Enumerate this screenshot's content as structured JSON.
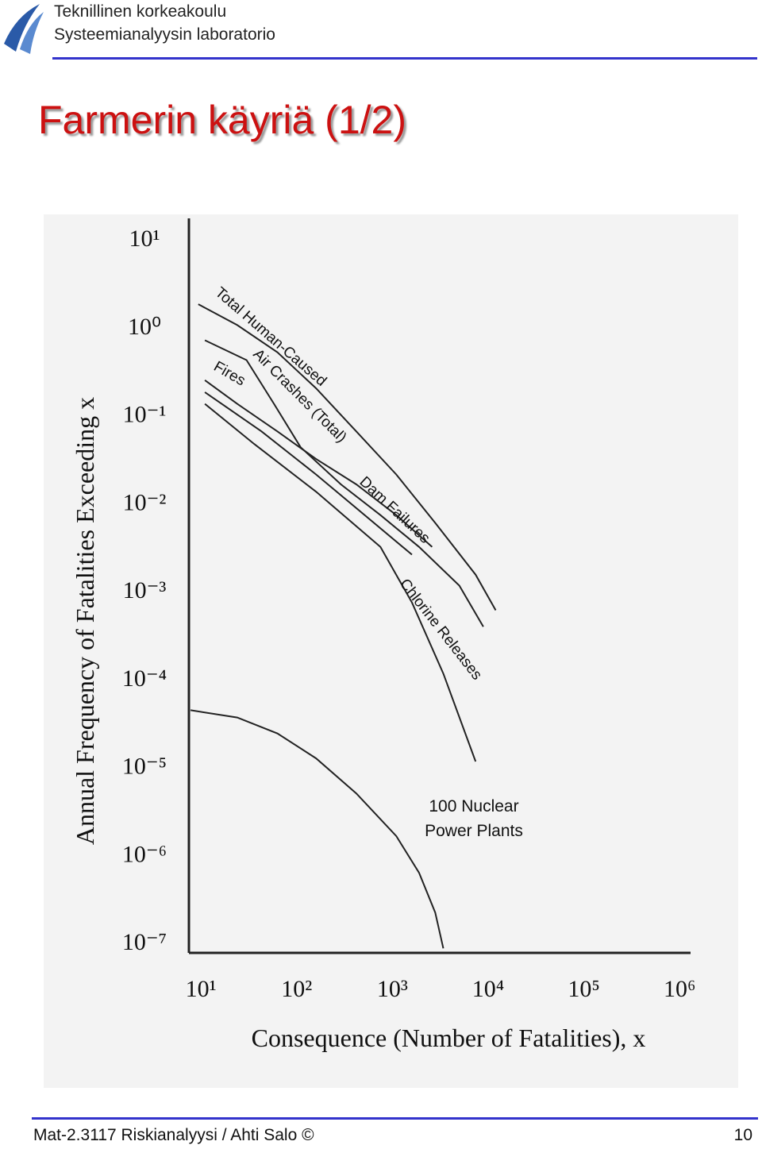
{
  "header": {
    "institution": "Teknillinen korkeakoulu",
    "department": "Systeemianalyysin laboratorio"
  },
  "slide_title": "Farmerin käyriä (1/2)",
  "footer": {
    "course": "Mat-2.3117 Riskianalyysi / Ahti Salo ©",
    "page": "10"
  },
  "chart_data": {
    "type": "line",
    "log_x": true,
    "log_y": true,
    "xlabel": "Consequence (Number of Fatalities), x",
    "ylabel": "Annual Frequency of Fatalities Exceeding x",
    "xlim": [
      7.5,
      1300000
    ],
    "ylim": [
      8e-08,
      18
    ],
    "xticks": [
      {
        "value": 10,
        "label": "10¹"
      },
      {
        "value": 100,
        "label": "10²"
      },
      {
        "value": 1000,
        "label": "10³"
      },
      {
        "value": 10000,
        "label": "10⁴"
      },
      {
        "value": 100000,
        "label": "10⁵"
      },
      {
        "value": 1000000,
        "label": "10⁶"
      }
    ],
    "yticks": [
      {
        "value": 1e-07,
        "label": "10⁻⁷"
      },
      {
        "value": 1e-06,
        "label": "10⁻⁶"
      },
      {
        "value": 1e-05,
        "label": "10⁻⁵"
      },
      {
        "value": 0.0001,
        "label": "10⁻⁴"
      },
      {
        "value": 0.001,
        "label": "10⁻³"
      },
      {
        "value": 0.01,
        "label": "10⁻²"
      },
      {
        "value": 0.1,
        "label": "10⁻¹"
      },
      {
        "value": 1,
        "label": "10⁰"
      },
      {
        "value": 10,
        "label": "10¹"
      }
    ],
    "series": [
      {
        "name": "Total Human-Caused",
        "color": "#222222",
        "x": [
          9.4,
          24,
          63,
          160,
          420,
          1100,
          2800,
          7400,
          12000
        ],
        "values": [
          1.9,
          1.1,
          0.54,
          0.21,
          0.068,
          0.022,
          0.0062,
          0.0016,
          0.00063
        ]
      },
      {
        "name": "Air Crashes (Total)",
        "color": "#222222",
        "x": [
          11,
          30,
          58,
          110,
          290,
          750,
          1900,
          5000,
          8900
        ],
        "values": [
          0.74,
          0.44,
          0.14,
          0.045,
          0.017,
          0.0076,
          0.0033,
          0.0012,
          0.00041
        ]
      },
      {
        "name": "Fires",
        "color": "#222222",
        "x": [
          11,
          24,
          63,
          160,
          420,
          1100,
          2600
        ],
        "values": [
          0.26,
          0.14,
          0.068,
          0.033,
          0.017,
          0.0076,
          0.0033
        ]
      },
      {
        "name": "Dam Failures",
        "color": "#222222",
        "x": [
          11,
          43,
          160,
          1600
        ],
        "values": [
          0.19,
          0.068,
          0.022,
          0.0027
        ]
      },
      {
        "name": "Chlorine Releases",
        "color": "#222222",
        "x": [
          11,
          36,
          160,
          750,
          1600,
          3400,
          7400
        ],
        "values": [
          0.14,
          0.049,
          0.014,
          0.0033,
          0.00077,
          0.00012,
          1.2e-05
        ]
      },
      {
        "name": "100 Nuclear Power Plants",
        "color": "#222222",
        "x": [
          7.8,
          24,
          63,
          160,
          420,
          1100,
          1900,
          2800,
          3400
        ],
        "values": [
          4.6e-05,
          3.8e-05,
          2.5e-05,
          1.3e-05,
          5.2e-06,
          1.7e-06,
          6.5e-07,
          2.3e-07,
          9e-08
        ]
      }
    ]
  }
}
